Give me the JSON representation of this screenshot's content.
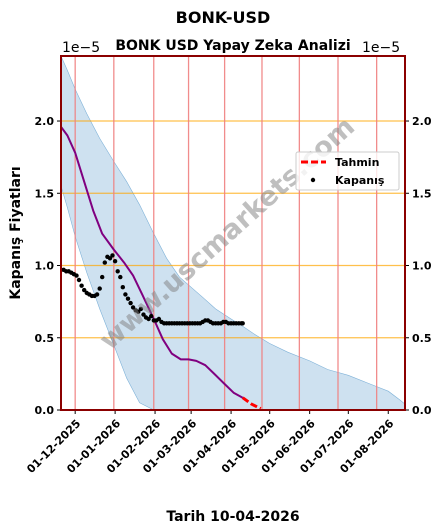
{
  "figure_title": "BONK-USD",
  "watermark": "www.uscmarkets.com",
  "colors": {
    "band": "#aecde6",
    "band_edge": "#7fb2d8",
    "forecast_line": "#800080",
    "forecast_tail": "#ff0000",
    "points": "#000000",
    "hgrid": "#ffa500",
    "vgrid": "#f08080",
    "frame": "#8b0000"
  },
  "chart_data": {
    "type": "line",
    "title": "BONK USD Yapay Zeka Analizi",
    "xlabel": "Tarih 10-04-2026",
    "ylabel": "Kapanış Fiyatları",
    "y_offset_label": "1e−5",
    "y_unit_scale": 1e-05,
    "ylim": [
      0,
      2.45
    ],
    "yticks": [
      0.0,
      0.5,
      1.0,
      1.5,
      2.0
    ],
    "ytick_labels": [
      "0.0",
      "0.5",
      "1.0",
      "1.5",
      "2.0"
    ],
    "xlim": [
      "2025-11-20",
      "2026-08-14"
    ],
    "xticks": [
      "2025-12-01",
      "2026-01-01",
      "2026-02-01",
      "2026-03-01",
      "2026-04-01",
      "2026-05-01",
      "2026-06-01",
      "2026-07-01",
      "2026-08-01"
    ],
    "xtick_labels": [
      "01-12-2025",
      "01-01-2026",
      "01-02-2026",
      "01-03-2026",
      "01-04-2026",
      "01-05-2026",
      "01-06-2026",
      "01-07-2026",
      "01-08-2026"
    ],
    "vlines": [
      "2025-12-01",
      "2025-12-31",
      "2026-01-31",
      "2026-02-27",
      "2026-03-27",
      "2026-04-25",
      "2026-05-24",
      "2026-06-23",
      "2026-07-23"
    ],
    "hgrid": true,
    "legend_position": "upper-right",
    "legend": [
      {
        "label": "Tahmin",
        "kind": "dashed-line"
      },
      {
        "label": "Kapanış",
        "kind": "dot"
      }
    ],
    "band": {
      "x": [
        "2025-11-20",
        "2025-11-25",
        "2025-12-01",
        "2025-12-10",
        "2025-12-20",
        "2025-12-31",
        "2026-01-10",
        "2026-01-20",
        "2026-01-31",
        "2026-02-10",
        "2026-02-20",
        "2026-03-01",
        "2026-03-10",
        "2026-03-20",
        "2026-04-01",
        "2026-04-10",
        "2026-04-20",
        "2026-05-01",
        "2026-05-15",
        "2026-06-01",
        "2026-06-15",
        "2026-07-01",
        "2026-07-15",
        "2026-08-01",
        "2026-08-10",
        "2026-08-14"
      ],
      "upper": [
        2.45,
        2.35,
        2.22,
        2.05,
        1.88,
        1.72,
        1.58,
        1.42,
        1.22,
        1.05,
        0.92,
        0.85,
        0.78,
        0.7,
        0.63,
        0.58,
        0.52,
        0.46,
        0.4,
        0.34,
        0.28,
        0.24,
        0.19,
        0.13,
        0.07,
        0.04
      ],
      "lower": [
        1.55,
        1.4,
        1.2,
        0.95,
        0.7,
        0.45,
        0.22,
        0.05,
        0.0,
        0.0,
        0.0,
        0.0,
        0.0,
        0.0,
        0.0,
        0.0,
        0.0,
        0.0,
        0.0,
        0.0,
        0.0,
        0.0,
        0.0,
        0.0,
        0.0,
        0.0
      ]
    },
    "series": [
      {
        "name": "Tahmin",
        "kind": "line",
        "x": [
          "2025-11-20",
          "2025-11-25",
          "2025-12-01",
          "2025-12-08",
          "2025-12-15",
          "2025-12-22",
          "2025-12-31",
          "2026-01-08",
          "2026-01-15",
          "2026-01-22",
          "2026-01-31",
          "2026-02-07",
          "2026-02-14",
          "2026-02-21",
          "2026-02-27",
          "2026-03-05",
          "2026-03-12",
          "2026-03-19",
          "2026-03-27",
          "2026-04-03",
          "2026-04-10"
        ],
        "values": [
          1.96,
          1.9,
          1.78,
          1.58,
          1.38,
          1.22,
          1.11,
          1.02,
          0.93,
          0.8,
          0.63,
          0.49,
          0.39,
          0.35,
          0.35,
          0.34,
          0.31,
          0.25,
          0.18,
          0.12,
          0.085
        ]
      },
      {
        "name": "Tahmin",
        "kind": "dashed-line",
        "x": [
          "2026-04-10",
          "2026-04-17",
          "2026-04-24"
        ],
        "values": [
          0.085,
          0.04,
          0.01
        ]
      },
      {
        "name": "Kapanış",
        "kind": "scatter",
        "x": [
          "2025-11-20",
          "2025-11-22",
          "2025-11-24",
          "2025-11-26",
          "2025-11-28",
          "2025-11-30",
          "2025-12-02",
          "2025-12-04",
          "2025-12-06",
          "2025-12-08",
          "2025-12-10",
          "2025-12-12",
          "2025-12-14",
          "2025-12-16",
          "2025-12-18",
          "2025-12-20",
          "2025-12-22",
          "2025-12-24",
          "2025-12-26",
          "2025-12-28",
          "2025-12-30",
          "2026-01-01",
          "2026-01-03",
          "2026-01-05",
          "2026-01-07",
          "2026-01-09",
          "2026-01-11",
          "2026-01-13",
          "2026-01-15",
          "2026-01-17",
          "2026-01-19",
          "2026-01-21",
          "2026-01-23",
          "2026-01-25",
          "2026-01-27",
          "2026-01-29",
          "2026-01-31",
          "2026-02-02",
          "2026-02-04",
          "2026-02-06",
          "2026-02-08",
          "2026-02-10",
          "2026-02-12",
          "2026-02-14",
          "2026-02-16",
          "2026-02-18",
          "2026-02-20",
          "2026-02-22",
          "2026-02-24",
          "2026-02-26",
          "2026-02-28",
          "2026-03-02",
          "2026-03-04",
          "2026-03-06",
          "2026-03-08",
          "2026-03-10",
          "2026-03-12",
          "2026-03-14",
          "2026-03-16",
          "2026-03-18",
          "2026-03-20",
          "2026-03-22",
          "2026-03-24",
          "2026-03-26",
          "2026-03-28",
          "2026-03-30",
          "2026-04-01",
          "2026-04-03",
          "2026-04-05",
          "2026-04-07",
          "2026-04-09",
          "2026-04-10"
        ],
        "values": [
          0.97,
          0.97,
          0.96,
          0.96,
          0.95,
          0.94,
          0.93,
          0.9,
          0.86,
          0.83,
          0.81,
          0.8,
          0.79,
          0.79,
          0.8,
          0.84,
          0.92,
          1.02,
          1.06,
          1.05,
          1.07,
          1.03,
          0.96,
          0.92,
          0.85,
          0.8,
          0.77,
          0.74,
          0.71,
          0.69,
          0.68,
          0.7,
          0.66,
          0.64,
          0.63,
          0.65,
          0.62,
          0.62,
          0.63,
          0.61,
          0.6,
          0.6,
          0.6,
          0.6,
          0.6,
          0.6,
          0.6,
          0.6,
          0.6,
          0.6,
          0.6,
          0.6,
          0.6,
          0.6,
          0.6,
          0.61,
          0.62,
          0.62,
          0.61,
          0.6,
          0.6,
          0.6,
          0.6,
          0.61,
          0.61,
          0.6,
          0.6,
          0.6,
          0.6,
          0.6,
          0.6,
          0.6
        ]
      }
    ]
  }
}
